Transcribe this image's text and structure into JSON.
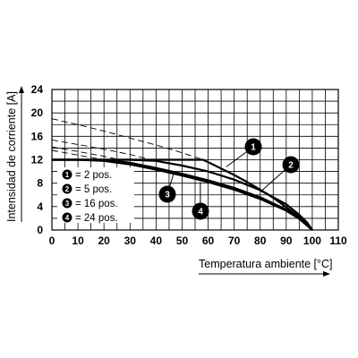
{
  "chart_data": {
    "type": "line",
    "xlabel": "Temperatura ambiente [°C]",
    "ylabel": "Intensidad de corriente [A]",
    "xlim": [
      0,
      110
    ],
    "ylim": [
      0,
      24
    ],
    "x_ticks": [
      "0",
      "10",
      "20",
      "30",
      "40",
      "50",
      "60",
      "70",
      "80",
      "90",
      "100",
      "110"
    ],
    "y_ticks": [
      "0",
      "4",
      "8",
      "12",
      "16",
      "20",
      "24"
    ],
    "grid": true,
    "series": [
      {
        "label": "1",
        "name": "= 2 pos.",
        "x": [
          0,
          10,
          20,
          30,
          40,
          50,
          58,
          60,
          65,
          70,
          75,
          80,
          85,
          90,
          95,
          98,
          100
        ],
        "y": [
          12,
          12,
          12,
          12,
          12,
          12,
          12,
          11.6,
          10.5,
          9.4,
          8.2,
          6.9,
          5.5,
          3.9,
          2.2,
          1.0,
          0
        ],
        "dashed_x": [
          0,
          10,
          20,
          30,
          40,
          50,
          58
        ],
        "dashed_y": [
          19.0,
          18.0,
          16.9,
          15.7,
          14.5,
          13.2,
          12.0
        ]
      },
      {
        "label": "2",
        "name": "= 5 pos.",
        "x": [
          0,
          10,
          20,
          30,
          40,
          50,
          60,
          70,
          80,
          90,
          95,
          98,
          100
        ],
        "y": [
          12,
          12,
          12,
          12,
          11.8,
          11.0,
          10.0,
          8.6,
          6.8,
          4.4,
          2.6,
          1.3,
          0
        ],
        "dashed_x": [
          0,
          10,
          20,
          30,
          38
        ],
        "dashed_y": [
          15.4,
          14.6,
          13.8,
          12.9,
          12.0
        ]
      },
      {
        "label": "3",
        "name": "= 16 pos.",
        "x": [
          0,
          10,
          20,
          30,
          40,
          50,
          60,
          70,
          80,
          90,
          95,
          100
        ],
        "y": [
          12,
          12,
          12,
          11.5,
          10.6,
          9.6,
          8.5,
          7.2,
          5.6,
          3.5,
          2.0,
          0
        ],
        "dashed_x": [
          0,
          10,
          20,
          26
        ],
        "dashed_y": [
          14.2,
          13.4,
          12.6,
          12.0
        ]
      },
      {
        "label": "4",
        "name": "= 24 pos.",
        "x": [
          0,
          10,
          20,
          30,
          40,
          50,
          60,
          70,
          80,
          90,
          95,
          100
        ],
        "y": [
          12,
          12,
          11.8,
          11.2,
          10.3,
          9.3,
          8.2,
          6.9,
          5.3,
          3.3,
          1.9,
          0
        ],
        "dashed_x": [
          0,
          10,
          20
        ],
        "dashed_y": [
          13.6,
          12.8,
          12.0
        ]
      }
    ],
    "callouts": [
      "1",
      "2",
      "3",
      "4"
    ]
  }
}
